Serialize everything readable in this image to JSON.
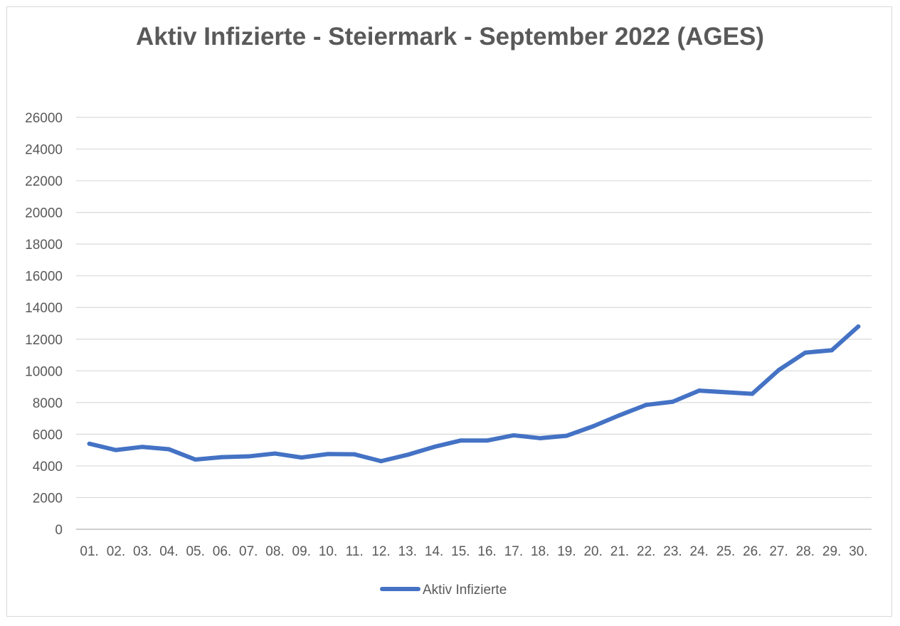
{
  "chart_data": {
    "type": "line",
    "title": "Aktiv Infizierte - Steiermark - September 2022 (AGES)",
    "xlabel": "",
    "ylabel": "",
    "ylim": [
      0,
      26000
    ],
    "yticks": [
      0,
      2000,
      4000,
      6000,
      8000,
      10000,
      12000,
      14000,
      16000,
      18000,
      20000,
      22000,
      24000,
      26000
    ],
    "grid": true,
    "legend_position": "bottom",
    "categories": [
      "01.",
      "02.",
      "03.",
      "04.",
      "05.",
      "06.",
      "07.",
      "08.",
      "09.",
      "10.",
      "11.",
      "12.",
      "13.",
      "14.",
      "15.",
      "16.",
      "17.",
      "18.",
      "19.",
      "20.",
      "21.",
      "22.",
      "23.",
      "24.",
      "25.",
      "26.",
      "27.",
      "28.",
      "29.",
      "30."
    ],
    "series": [
      {
        "name": "Aktiv Infizierte",
        "color": "#4472c4",
        "values": [
          5400,
          5000,
          5200,
          5050,
          4400,
          4550,
          4600,
          4780,
          4530,
          4750,
          4730,
          4300,
          4700,
          5200,
          5600,
          5600,
          5930,
          5750,
          5900,
          6500,
          7200,
          7850,
          8050,
          8750,
          8650,
          8550,
          10050,
          11150,
          11300,
          12800
        ]
      }
    ]
  }
}
